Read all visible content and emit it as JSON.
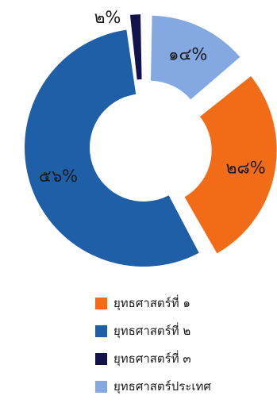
{
  "chart_data": {
    "type": "pie",
    "variant": "donut",
    "slices": [
      {
        "name": "ยุทธศาสตร์ที่ ๑",
        "value": 28,
        "label": "๒๘%",
        "color": "#f26b16",
        "exploded": true
      },
      {
        "name": "ยุทธศาสตร์ที่ ๒",
        "value": 56,
        "label": "๕๖%",
        "color": "#1e5fa8",
        "exploded": false
      },
      {
        "name": "ยุทธศาสตร์ที่ ๓",
        "value": 2,
        "label": "๒%",
        "color": "#13124a",
        "exploded": true
      },
      {
        "name": "ยุทธศาสตร์ประเทศ",
        "value": 14,
        "label": "๑๔%",
        "color": "#84a8e2",
        "exploded": true
      }
    ],
    "legend_position": "bottom"
  }
}
